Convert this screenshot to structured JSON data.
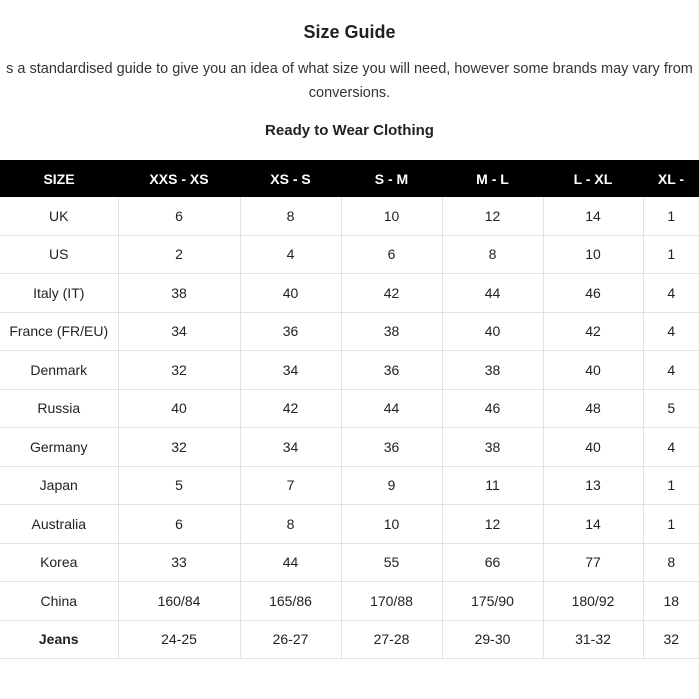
{
  "title": "Size Guide",
  "intro_line1": "s a standardised guide to give you an idea of what size you will need, however some brands may vary from",
  "intro_line2": "conversions.",
  "section_title": "Ready to Wear Clothing",
  "table": {
    "headers": [
      "SIZE",
      "XXS - XS",
      "XS - S",
      "S - M",
      "M - L",
      "L - XL",
      "XL -"
    ],
    "rows": [
      [
        "UK",
        "6",
        "8",
        "10",
        "12",
        "14",
        "1"
      ],
      [
        "US",
        "2",
        "4",
        "6",
        "8",
        "10",
        "1"
      ],
      [
        "Italy (IT)",
        "38",
        "40",
        "42",
        "44",
        "46",
        "4"
      ],
      [
        "France (FR/EU)",
        "34",
        "36",
        "38",
        "40",
        "42",
        "4"
      ],
      [
        "Denmark",
        "32",
        "34",
        "36",
        "38",
        "40",
        "4"
      ],
      [
        "Russia",
        "40",
        "42",
        "44",
        "46",
        "48",
        "5"
      ],
      [
        "Germany",
        "32",
        "34",
        "36",
        "38",
        "40",
        "4"
      ],
      [
        "Japan",
        "5",
        "7",
        "9",
        "11",
        "13",
        "1"
      ],
      [
        "Australia",
        "6",
        "8",
        "10",
        "12",
        "14",
        "1"
      ],
      [
        "Korea",
        "33",
        "44",
        "55",
        "66",
        "77",
        "8"
      ],
      [
        "China",
        "160/84",
        "165/86",
        "170/88",
        "175/90",
        "180/92",
        "18"
      ],
      [
        "Jeans",
        "24-25",
        "26-27",
        "27-28",
        "29-30",
        "31-32",
        "32"
      ]
    ]
  }
}
